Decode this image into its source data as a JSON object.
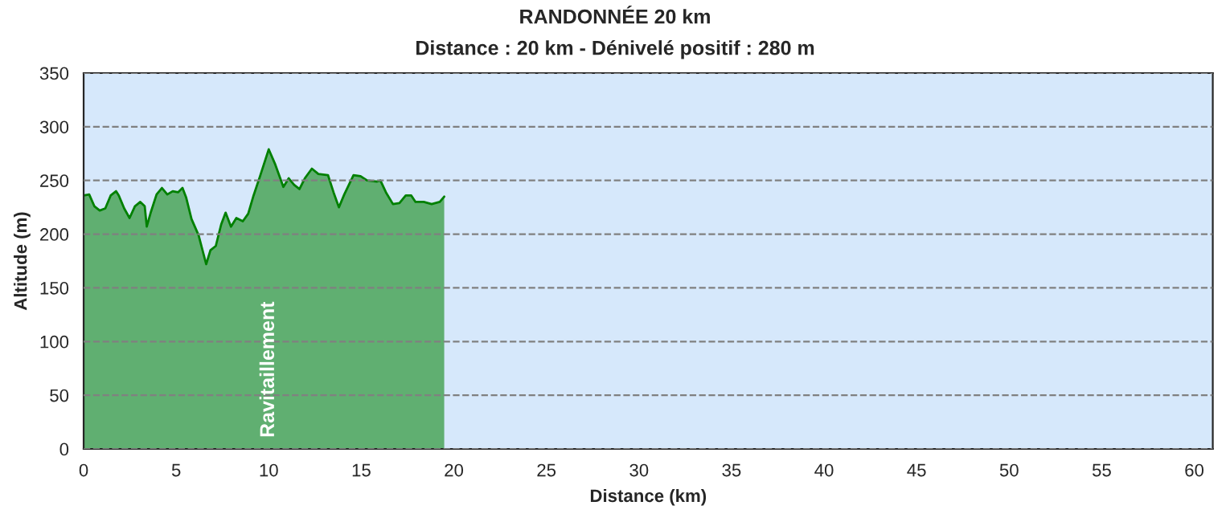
{
  "chart_data": {
    "type": "area",
    "title": "RANDONNÉE 20 km",
    "subtitle": "Distance : 20 km - Dénivelé positif : 280 m",
    "xlabel": "Distance (km)",
    "ylabel": "Altitude (m)",
    "series": [
      {
        "color": "#008000",
        "x": [
          0,
          0.3,
          0.58,
          0.87,
          1.17,
          1.46,
          1.75,
          1.9,
          2.19,
          2.48,
          2.77,
          3.06,
          3.3,
          3.41,
          3.64,
          3.94,
          4.23,
          4.52,
          4.81,
          5.1,
          5.34,
          5.54,
          5.83,
          6.21,
          6.62,
          6.85,
          7.14,
          7.43,
          7.67,
          7.96,
          8.25,
          8.6,
          8.89,
          9.18,
          9.53,
          10.0,
          10.35,
          10.79,
          11.08,
          11.37,
          11.66,
          11.95,
          12.33,
          12.68,
          13.2,
          13.5,
          13.79,
          14.08,
          14.58,
          14.96,
          15.31,
          15.83,
          16.03,
          16.33,
          16.71,
          17.06,
          17.4,
          17.7,
          17.93,
          18.37,
          18.8,
          19.24,
          19.48
        ],
        "values": [
          236,
          237,
          226,
          222,
          224,
          236,
          240,
          236,
          224,
          215,
          226,
          230,
          226,
          207,
          221,
          237,
          243,
          237,
          240,
          239,
          243,
          234,
          214,
          199,
          172,
          185,
          189,
          209,
          220,
          207,
          215,
          212,
          219,
          236,
          254,
          279,
          265,
          244,
          252,
          246,
          242,
          252,
          261,
          256,
          255,
          239,
          225,
          237,
          255,
          254,
          250,
          249,
          250,
          239,
          228,
          229,
          236,
          236,
          230,
          230,
          228,
          230,
          235
        ]
      }
    ],
    "annotations": [
      "Ravitaillement"
    ],
    "xlim": [
      0,
      61
    ],
    "ylim": [
      0,
      350
    ],
    "xticks": [
      0,
      5,
      10,
      15,
      20,
      25,
      30,
      35,
      40,
      45,
      50,
      55,
      60
    ],
    "yticks": [
      0,
      50,
      100,
      150,
      200,
      250,
      300,
      350
    ],
    "grid": "y",
    "line_style": "solid"
  }
}
